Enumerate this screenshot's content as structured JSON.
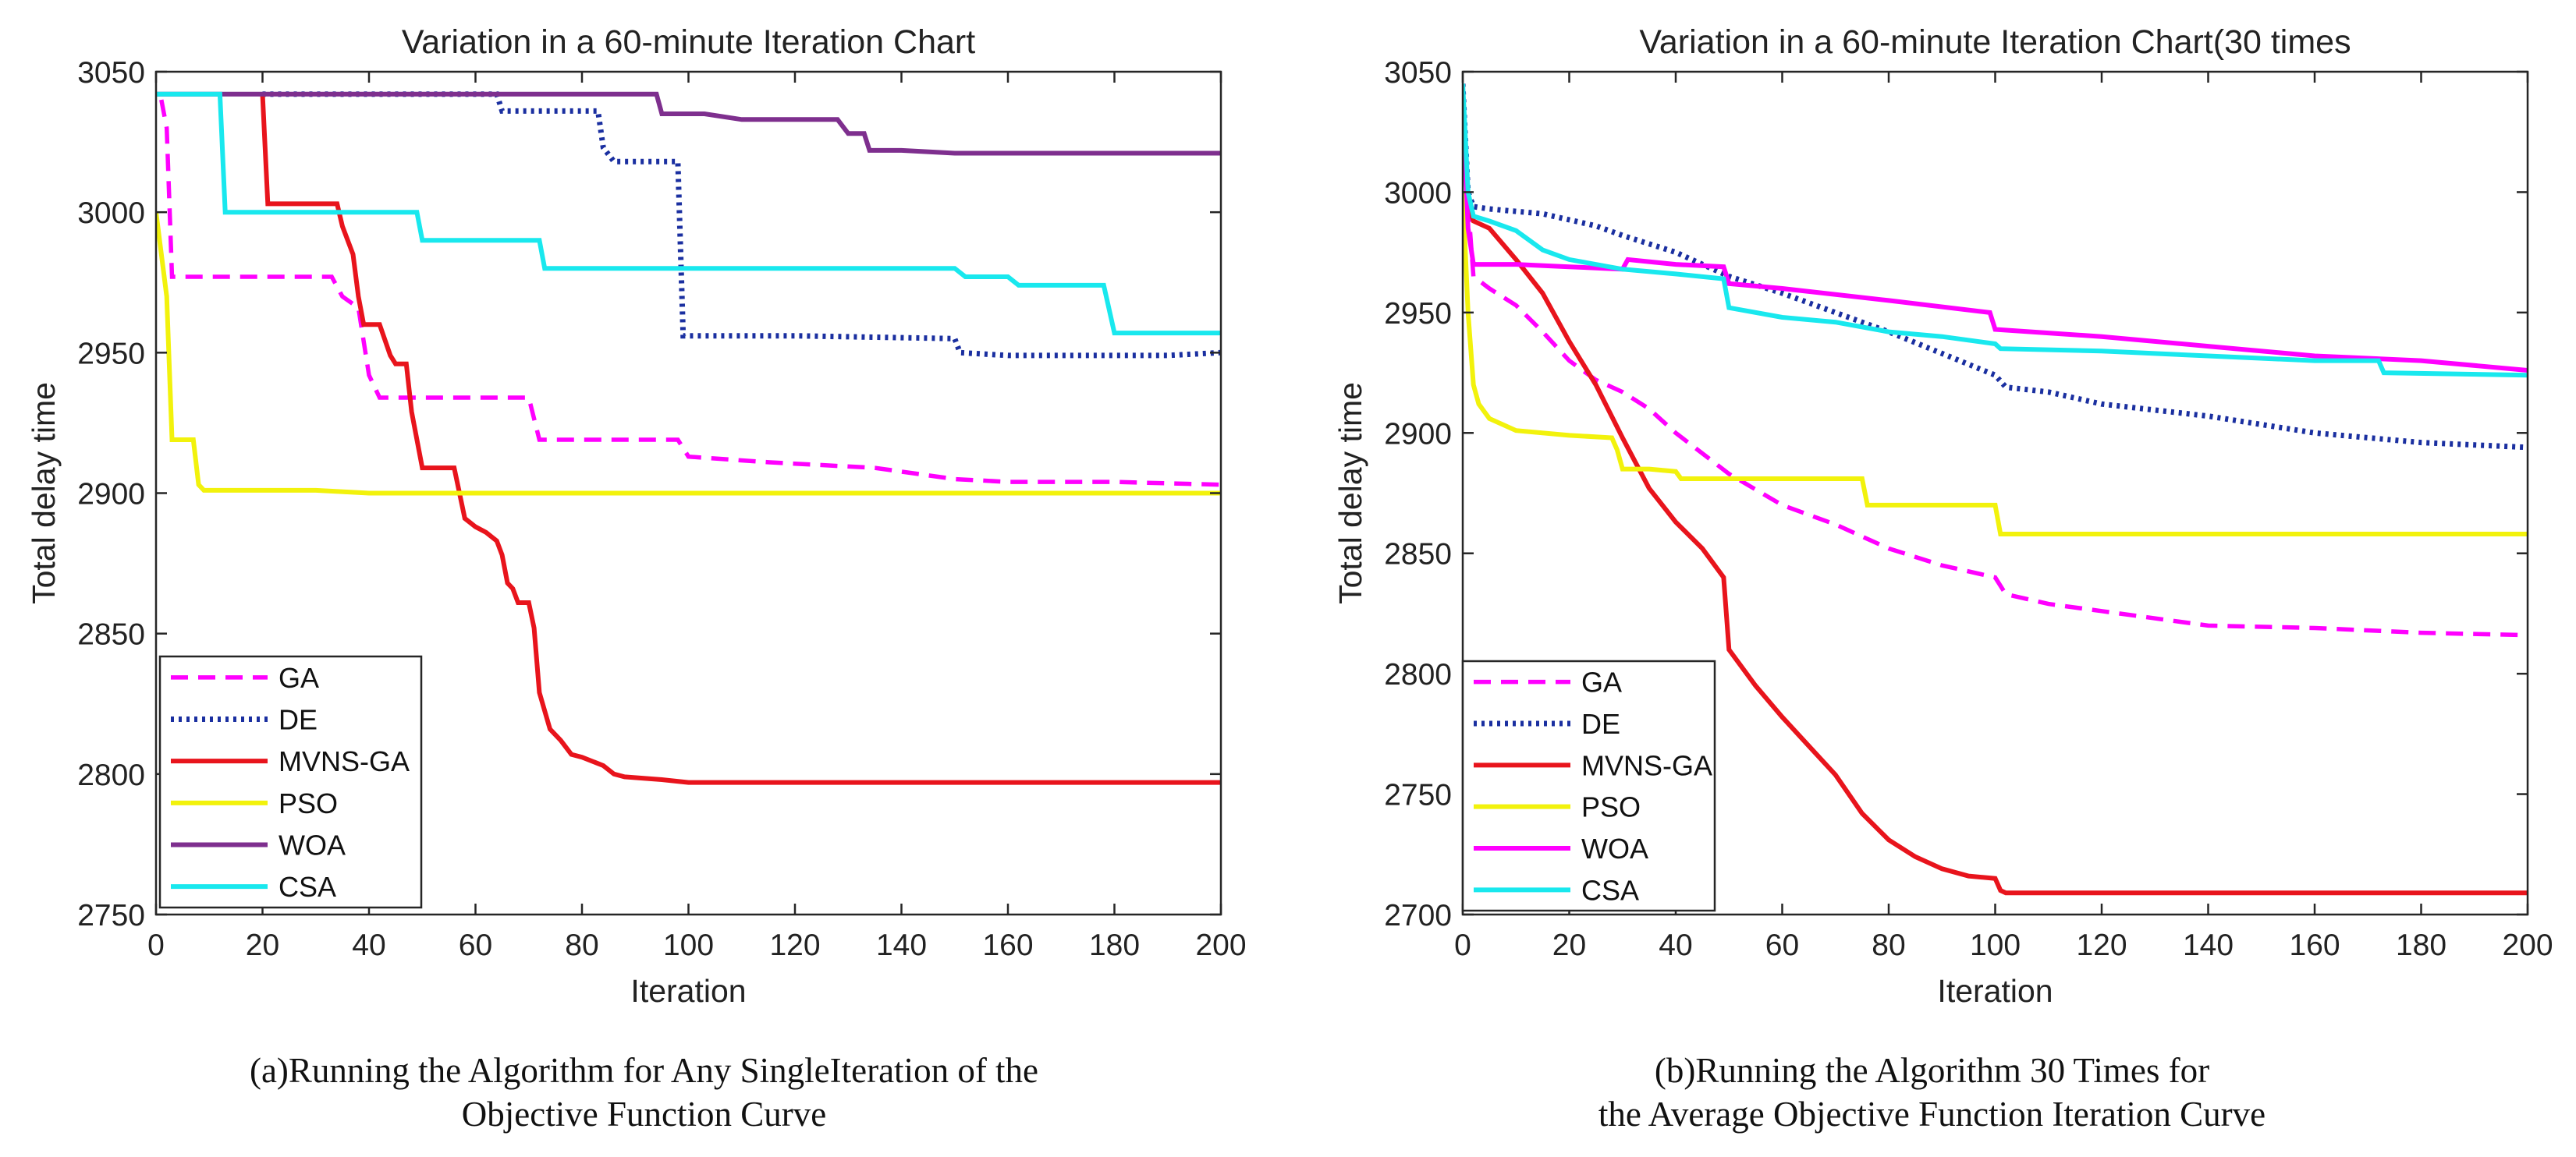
{
  "chart_data": [
    {
      "type": "line",
      "title": "Variation in a 60-minute Iteration Chart",
      "xlabel": "Iteration",
      "ylabel": "Total delay time",
      "xlim": [
        0,
        200
      ],
      "ylim": [
        2750,
        3050
      ],
      "xticks": [
        "0",
        "20",
        "40",
        "60",
        "80",
        "100",
        "120",
        "140",
        "160",
        "180",
        "200"
      ],
      "yticks": [
        "2750",
        "2800",
        "2850",
        "2900",
        "2950",
        "3000",
        "3050"
      ],
      "legend_position": "bottom-left",
      "caption_lines": [
        "(a)Running the Algorithm for Any SingleIteration of the",
        "Objective Function Curve"
      ],
      "series": [
        {
          "name": "GA",
          "color": "#ff00ff",
          "dash": "dashed",
          "x": [
            1,
            2,
            3,
            33,
            35,
            38,
            40,
            42,
            70,
            72,
            98,
            100,
            115,
            135,
            150,
            160,
            180,
            200
          ],
          "y": [
            3040,
            3030,
            2977,
            2977,
            2970,
            2966,
            2942,
            2934,
            2934,
            2919,
            2919,
            2913,
            2911,
            2909,
            2905,
            2904,
            2904,
            2903
          ]
        },
        {
          "name": "DE",
          "color": "#1a2fa0",
          "dash": "dotted",
          "x": [
            20,
            64,
            65,
            83,
            84,
            86,
            98,
            99,
            120,
            150,
            151,
            160,
            190,
            200
          ],
          "y": [
            3042,
            3042,
            3036,
            3036,
            3023,
            3018,
            3018,
            2956,
            2956,
            2955,
            2950,
            2949,
            2949,
            2950
          ]
        },
        {
          "name": "MVNS-GA",
          "color": "#e8141c",
          "dash": "solid",
          "x": [
            20,
            21,
            34,
            35,
            37,
            38,
            39,
            42,
            44,
            45,
            47,
            48,
            50,
            56,
            58,
            60,
            62,
            64,
            65,
            66,
            67,
            68,
            70,
            71,
            72,
            74,
            76,
            78,
            80,
            84,
            86,
            88,
            95,
            100,
            200
          ],
          "y": [
            3042,
            3003,
            3003,
            2995,
            2985,
            2970,
            2960,
            2960,
            2949,
            2946,
            2946,
            2929,
            2909,
            2909,
            2891,
            2888,
            2886,
            2883,
            2878,
            2868,
            2866,
            2861,
            2861,
            2852,
            2829,
            2816,
            2812,
            2807,
            2806,
            2803,
            2800,
            2799,
            2798,
            2797,
            2797
          ]
        },
        {
          "name": "PSO",
          "color": "#f2f20c",
          "dash": "solid",
          "x": [
            0,
            2,
            3,
            7,
            8,
            9,
            30,
            40,
            60,
            80,
            200
          ],
          "y": [
            3000,
            2970,
            2919,
            2919,
            2903,
            2901,
            2901,
            2900,
            2900,
            2900,
            2900
          ]
        },
        {
          "name": "WOA",
          "color": "#7e2f8e",
          "dash": "solid",
          "x": [
            0,
            94,
            95,
            103,
            110,
            128,
            130,
            133,
            134,
            140,
            150,
            200
          ],
          "y": [
            3042,
            3042,
            3035,
            3035,
            3033,
            3033,
            3028,
            3028,
            3022,
            3022,
            3021,
            3021
          ]
        },
        {
          "name": "CSA",
          "color": "#19e8ee",
          "dash": "solid",
          "x": [
            0,
            12,
            13,
            35,
            49,
            50,
            72,
            73,
            150,
            152,
            160,
            162,
            178,
            180,
            200
          ],
          "y": [
            3042,
            3042,
            3000,
            3000,
            3000,
            2990,
            2990,
            2980,
            2980,
            2977,
            2977,
            2974,
            2974,
            2957,
            2957
          ]
        }
      ]
    },
    {
      "type": "line",
      "title": "Variation in a 60-minute Iteration Chart(30 times",
      "xlabel": "Iteration",
      "ylabel": "Total delay time",
      "xlim": [
        0,
        200
      ],
      "ylim": [
        2700,
        3050
      ],
      "xticks": [
        "0",
        "20",
        "40",
        "60",
        "80",
        "100",
        "120",
        "140",
        "160",
        "180",
        "200"
      ],
      "yticks": [
        "2700",
        "2750",
        "2800",
        "2850",
        "2900",
        "2950",
        "3000",
        "3050"
      ],
      "legend_position": "bottom-left",
      "caption_lines": [
        "(b)Running the Algorithm 30 Times for",
        "the Average Objective Function Iteration Curve"
      ],
      "series": [
        {
          "name": "GA",
          "color": "#ff00ff",
          "dash": "dashed",
          "x": [
            0,
            1,
            2,
            5,
            10,
            15,
            20,
            25,
            30,
            35,
            40,
            50,
            60,
            70,
            80,
            90,
            100,
            102,
            110,
            120,
            140,
            160,
            180,
            200
          ],
          "y": [
            3040,
            2995,
            2965,
            2960,
            2953,
            2942,
            2930,
            2922,
            2917,
            2910,
            2900,
            2883,
            2870,
            2862,
            2852,
            2845,
            2840,
            2833,
            2829,
            2826,
            2820,
            2819,
            2817,
            2816
          ]
        },
        {
          "name": "DE",
          "color": "#1a2fa0",
          "dash": "dotted",
          "x": [
            0,
            1,
            2,
            5,
            15,
            25,
            30,
            40,
            50,
            60,
            70,
            80,
            90,
            100,
            102,
            110,
            120,
            140,
            160,
            180,
            200
          ],
          "y": [
            3045,
            3000,
            2994,
            2993,
            2991,
            2986,
            2982,
            2975,
            2965,
            2958,
            2950,
            2942,
            2933,
            2924,
            2919,
            2917,
            2912,
            2907,
            2900,
            2896,
            2894
          ]
        },
        {
          "name": "MVNS-GA",
          "color": "#e8141c",
          "dash": "solid",
          "x": [
            0,
            1,
            2,
            5,
            10,
            15,
            20,
            25,
            30,
            35,
            40,
            45,
            49,
            50,
            55,
            60,
            65,
            70,
            75,
            80,
            85,
            90,
            95,
            100,
            101,
            102,
            110,
            120,
            150,
            200
          ],
          "y": [
            3000,
            2995,
            2988,
            2985,
            2972,
            2958,
            2938,
            2920,
            2898,
            2877,
            2863,
            2852,
            2840,
            2810,
            2795,
            2782,
            2770,
            2758,
            2742,
            2731,
            2724,
            2719,
            2716,
            2715,
            2710,
            2709,
            2709,
            2709,
            2709,
            2709
          ]
        },
        {
          "name": "PSO",
          "color": "#f2f20c",
          "dash": "solid",
          "x": [
            0,
            1,
            2,
            3,
            5,
            10,
            20,
            28,
            29,
            30,
            35,
            40,
            41,
            75,
            76,
            100,
            101,
            150,
            200
          ],
          "y": [
            3000,
            2950,
            2920,
            2912,
            2906,
            2901,
            2899,
            2898,
            2893,
            2885,
            2885,
            2884,
            2881,
            2881,
            2870,
            2870,
            2858,
            2858,
            2858
          ]
        },
        {
          "name": "WOA",
          "color": "#ff00ff",
          "dash": "solid",
          "x": [
            0,
            1,
            2,
            10,
            20,
            30,
            31,
            40,
            49,
            50,
            60,
            80,
            99,
            100,
            120,
            140,
            160,
            180,
            200
          ],
          "y": [
            3040,
            2985,
            2970,
            2970,
            2969,
            2968,
            2972,
            2970,
            2969,
            2962,
            2960,
            2955,
            2950,
            2943,
            2940,
            2936,
            2932,
            2930,
            2926
          ]
        },
        {
          "name": "CSA",
          "color": "#19e8ee",
          "dash": "solid",
          "x": [
            0,
            1,
            2,
            5,
            10,
            15,
            20,
            30,
            40,
            49,
            50,
            60,
            70,
            80,
            90,
            100,
            101,
            120,
            140,
            160,
            172,
            173,
            200
          ],
          "y": [
            3045,
            3000,
            2990,
            2988,
            2984,
            2976,
            2972,
            2968,
            2966,
            2964,
            2952,
            2948,
            2946,
            2942,
            2940,
            2937,
            2935,
            2934,
            2932,
            2930,
            2930,
            2925,
            2924
          ]
        }
      ]
    }
  ]
}
